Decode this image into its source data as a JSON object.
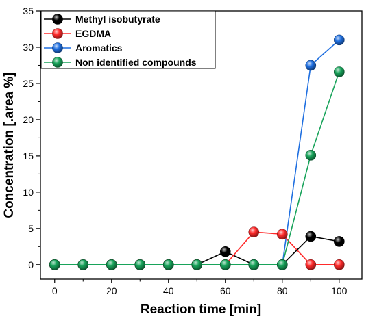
{
  "chart_data": {
    "type": "line",
    "title": "",
    "xlabel": "Reaction time [min]",
    "ylabel": "Concentration [.area %]",
    "xlim": [
      -5,
      108
    ],
    "ylim": [
      -2,
      35
    ],
    "x_ticks": [
      0,
      20,
      40,
      60,
      80,
      100
    ],
    "y_ticks": [
      0,
      5,
      10,
      15,
      20,
      25,
      30,
      35
    ],
    "x": [
      0,
      10,
      20,
      30,
      40,
      50,
      60,
      70,
      80,
      90,
      100
    ],
    "grid": false,
    "legend_position": "top-left",
    "series": [
      {
        "name": "Methyl isobutyrate",
        "color": "#000000",
        "values": [
          0,
          0,
          0,
          0,
          0,
          0,
          1.8,
          0,
          0,
          3.9,
          3.2
        ]
      },
      {
        "name": "EGDMA",
        "color": "#ff2a2a",
        "values": [
          0,
          0,
          0,
          0,
          0,
          0,
          0,
          4.5,
          4.2,
          0,
          0
        ]
      },
      {
        "name": "Aromatics",
        "color": "#1f6fe0",
        "values": [
          0,
          0,
          0,
          0,
          0,
          0,
          0,
          0,
          0,
          27.5,
          31.0
        ]
      },
      {
        "name": "Non identified compounds",
        "color": "#18a35a",
        "values": [
          0,
          0,
          0,
          0,
          0,
          0,
          0,
          0,
          0,
          15.1,
          26.6
        ]
      }
    ],
    "draw_order": [
      2,
      0,
      1,
      3
    ]
  }
}
